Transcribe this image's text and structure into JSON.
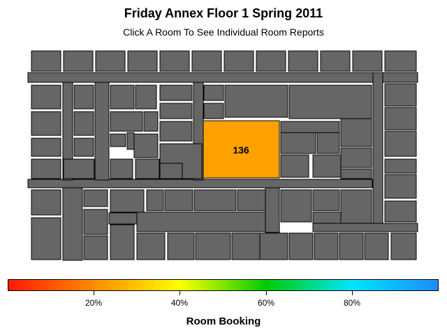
{
  "header": {
    "title": "Friday Annex Floor 1 Spring 2011",
    "subtitle": "Click A Room To See Individual Room Reports"
  },
  "floorplan": {
    "highlighted_room": {
      "label": "136",
      "booking": 0.3
    },
    "colors": {
      "room_default": "#666666",
      "room_highlight": "#ffa100",
      "outline": "#000000"
    }
  },
  "legend": {
    "title": "Room Booking",
    "ticks": [
      "20%",
      "40%",
      "60%",
      "80%"
    ],
    "gradient": [
      "#ff1a00",
      "#ff8c00",
      "#ffff00",
      "#00cc00",
      "#00e5ff",
      "#1e8cff"
    ]
  }
}
